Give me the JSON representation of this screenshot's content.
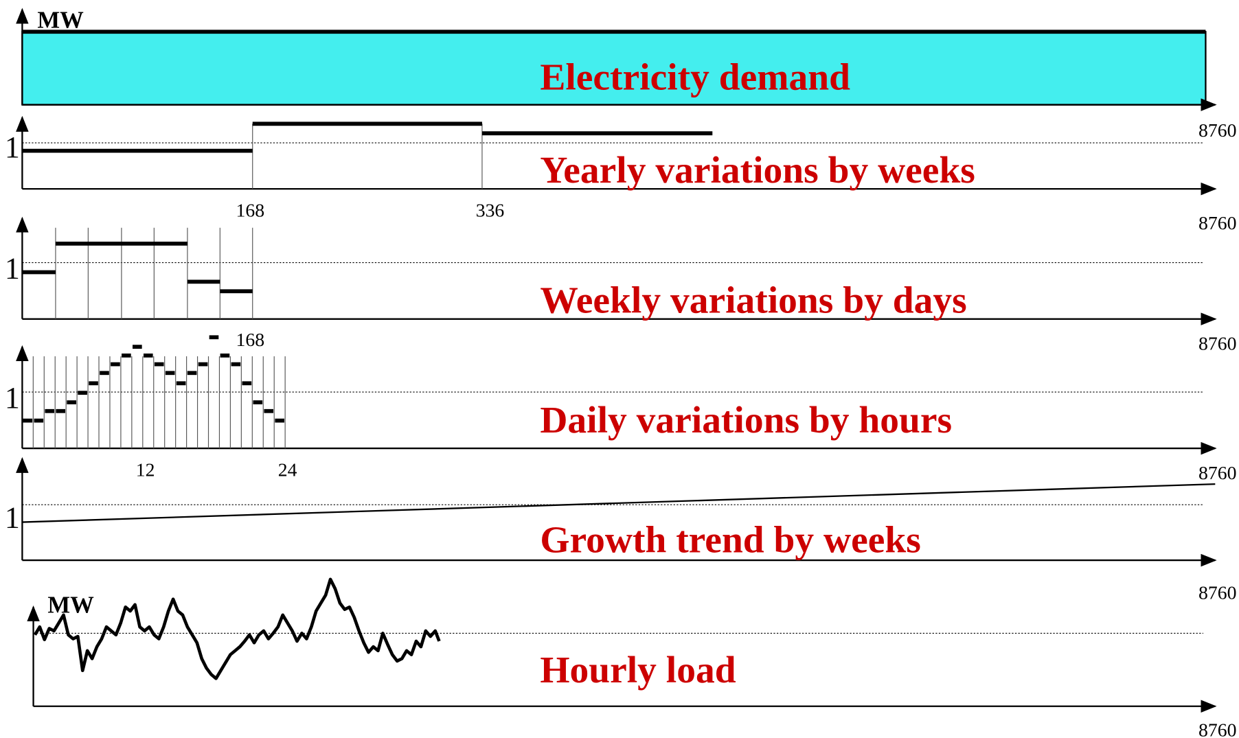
{
  "panels": [
    {
      "y_label": "MW",
      "title": "Electricity demand",
      "x_end": "8760"
    },
    {
      "y_label": "1",
      "title": "Yearly variations by weeks",
      "ticks": [
        "168",
        "336"
      ],
      "x_end": "8760"
    },
    {
      "y_label": "1",
      "title": "Weekly variations by days",
      "ticks": [
        "168"
      ],
      "x_end": "8760"
    },
    {
      "y_label": "1",
      "title": "Daily variations by hours",
      "ticks": [
        "12",
        "24"
      ],
      "x_end": "8760"
    },
    {
      "y_label": "1",
      "title": "Growth trend by weeks",
      "x_end": "8760"
    },
    {
      "y_label": "MW",
      "title": "Hourly load",
      "x_end": "8760"
    }
  ]
}
